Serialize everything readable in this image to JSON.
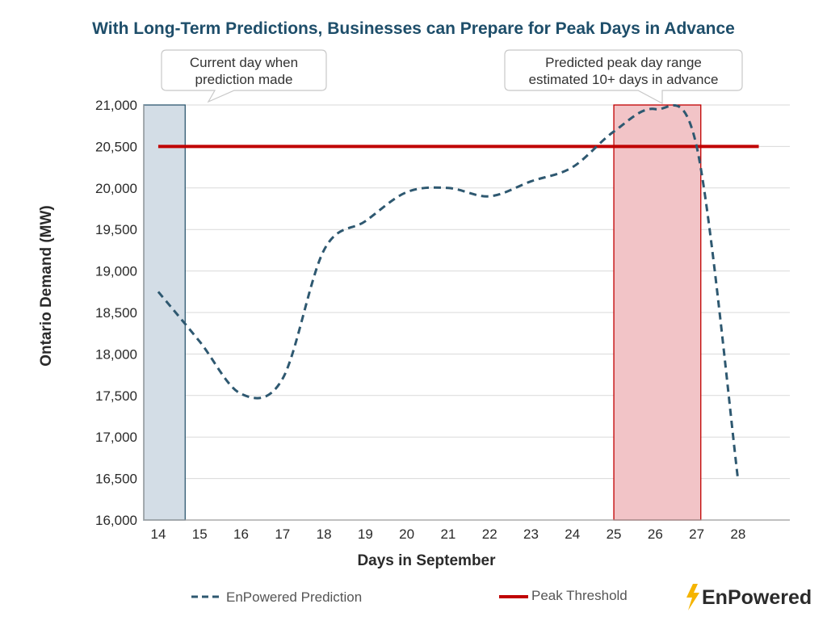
{
  "chart_data": {
    "type": "line",
    "title": "With Long-Term Predictions, Businesses can Prepare for Peak Days in Advance",
    "xlabel": "Days in September",
    "ylabel": "Ontario Demand (MW)",
    "xlim": [
      13.65,
      29.25
    ],
    "ylim": [
      16000,
      21000
    ],
    "x_ticks": [
      "14",
      "15",
      "16",
      "17",
      "18",
      "19",
      "20",
      "21",
      "22",
      "23",
      "24",
      "25",
      "26",
      "27",
      "28"
    ],
    "y_ticks": [
      "16,000",
      "16,500",
      "17,000",
      "17,500",
      "18,000",
      "18,500",
      "19,000",
      "19,500",
      "20,000",
      "20,500",
      "21,000"
    ],
    "grid": "horizontal",
    "series": [
      {
        "name": "EnPowered Prediction",
        "style": "dashed",
        "color": "#2e5870",
        "x": [
          14,
          15,
          16,
          17,
          18,
          19,
          20,
          21,
          22,
          23,
          24,
          25,
          26,
          27,
          28
        ],
        "values": [
          18750,
          18150,
          17520,
          17700,
          19250,
          19600,
          19950,
          20000,
          19900,
          20080,
          20250,
          20680,
          20950,
          20500,
          16480
        ]
      },
      {
        "name": "Peak Threshold",
        "style": "solid",
        "color": "#c00000",
        "x": [
          14,
          28.5
        ],
        "values": [
          20500,
          20500
        ]
      }
    ],
    "highlights": [
      {
        "from": 13.65,
        "to": 14.65,
        "color": "#d3dde6",
        "border": "#2e5870"
      },
      {
        "from": 25.0,
        "to": 27.1,
        "color": "#f2c4c7",
        "border": "#c00000"
      }
    ],
    "annotations": [
      {
        "lines": [
          "Current day when",
          "prediction made"
        ]
      },
      {
        "lines": [
          "Predicted peak day range",
          "estimated 10+ days in advance"
        ]
      }
    ],
    "legend_position": "bottom"
  },
  "brand": {
    "name": "EnPowered",
    "bolt_color": "#f5b400"
  },
  "colors": {
    "title": "#1e4e6a",
    "grid": "#d9d9d9",
    "axis": "#9a9a9a"
  }
}
